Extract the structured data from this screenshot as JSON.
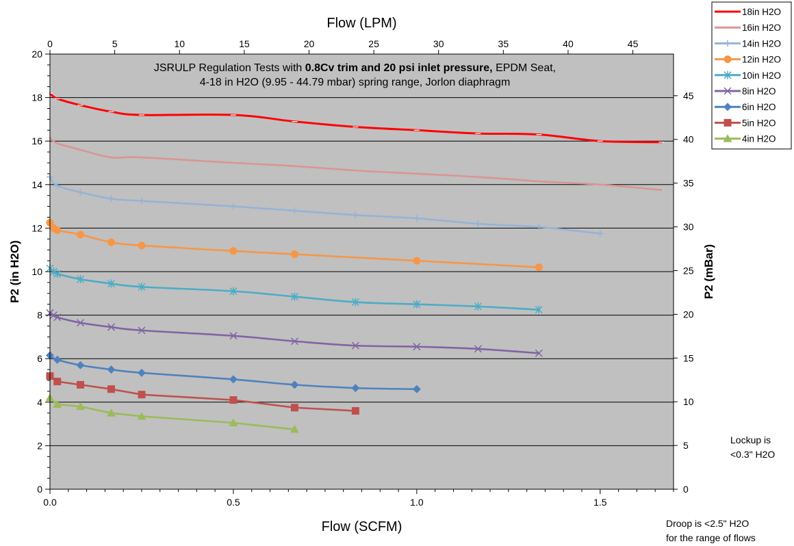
{
  "chart_data": {
    "type": "line",
    "title_lines": [
      [
        {
          "text": "JSRULP Regulation Tests with ",
          "bold": false
        },
        {
          "text": "0.8Cv trim and 20 psi inlet pressure,",
          "bold": true
        },
        {
          "text": " EPDM Seat,",
          "bold": false
        }
      ],
      [
        {
          "text": "4-18 in H2O (9.95 - 44.79 mbar) spring range, Jorlon diaphragm",
          "bold": false
        }
      ]
    ],
    "xlabel": "Flow (SCFM)",
    "x2label": "Flow (LPM)",
    "ylabel": "P2 (in H2O)",
    "y2label": "P2 (mBar)",
    "xlim": [
      0,
      1.7
    ],
    "ylim": [
      0,
      20
    ],
    "x2lim": [
      0,
      48.14
    ],
    "y2lim": [
      0,
      49.76
    ],
    "x_ticks": [
      0.0,
      0.5,
      1.0,
      1.5
    ],
    "x_tick_labels": [
      "0.0",
      "0.5",
      "1.0",
      "1.5"
    ],
    "y_ticks": [
      0,
      2,
      4,
      6,
      8,
      10,
      12,
      14,
      16,
      18,
      20
    ],
    "x2_ticks": [
      0,
      5,
      10,
      15,
      20,
      25,
      30,
      35,
      40,
      45
    ],
    "y2_ticks": [
      0,
      5,
      10,
      15,
      20,
      25,
      30,
      35,
      40,
      45
    ],
    "grid": "horizontal",
    "plot_background": "#c0c0c0",
    "legend_position": "top-right",
    "series": [
      {
        "name": "18in H2O",
        "color": "#ff0000",
        "marker": "dash",
        "smooth": true,
        "x": [
          0,
          0.02,
          0.083,
          0.167,
          0.25,
          0.5,
          0.667,
          0.833,
          1.0,
          1.167,
          1.333,
          1.5,
          1.667
        ],
        "y": [
          18.2,
          17.95,
          17.65,
          17.35,
          17.2,
          17.2,
          16.9,
          16.65,
          16.5,
          16.35,
          16.3,
          16.0,
          15.95
        ]
      },
      {
        "name": "16in H2O",
        "color": "#d99594",
        "marker": "none",
        "smooth": true,
        "x": [
          0,
          0.02,
          0.083,
          0.167,
          0.25,
          0.5,
          0.667,
          0.833,
          1.0,
          1.167,
          1.333,
          1.5,
          1.667
        ],
        "y": [
          16.15,
          15.9,
          15.6,
          15.25,
          15.25,
          15.0,
          14.85,
          14.65,
          14.5,
          14.35,
          14.15,
          14.0,
          13.75
        ]
      },
      {
        "name": "14in H2O",
        "color": "#95b3d7",
        "marker": "plus",
        "smooth": true,
        "x": [
          0,
          0.02,
          0.083,
          0.167,
          0.25,
          0.5,
          0.667,
          0.833,
          1.0,
          1.167,
          1.333,
          1.5
        ],
        "y": [
          14.35,
          13.95,
          13.65,
          13.35,
          13.25,
          13.0,
          12.8,
          12.6,
          12.45,
          12.2,
          12.05,
          11.75
        ]
      },
      {
        "name": "12in H2O",
        "color": "#f79646",
        "marker": "circle",
        "smooth": true,
        "x": [
          0,
          0.01,
          0.02,
          0.083,
          0.167,
          0.25,
          0.5,
          0.667,
          1.0,
          1.333
        ],
        "y": [
          12.25,
          12.0,
          11.9,
          11.7,
          11.35,
          11.2,
          10.95,
          10.8,
          10.5,
          10.2
        ]
      },
      {
        "name": "10in H2O",
        "color": "#4bacc6",
        "marker": "asterisk",
        "smooth": true,
        "x": [
          0,
          0.01,
          0.02,
          0.083,
          0.167,
          0.25,
          0.5,
          0.667,
          0.833,
          1.0,
          1.167,
          1.333
        ],
        "y": [
          10.15,
          10.0,
          9.9,
          9.65,
          9.45,
          9.3,
          9.1,
          8.85,
          8.6,
          8.5,
          8.4,
          8.25
        ]
      },
      {
        "name": "8in H2O",
        "color": "#8064a2",
        "marker": "x",
        "smooth": true,
        "x": [
          0,
          0.01,
          0.02,
          0.083,
          0.167,
          0.25,
          0.5,
          0.667,
          0.833,
          1.0,
          1.167,
          1.333
        ],
        "y": [
          8.1,
          8.0,
          7.9,
          7.65,
          7.45,
          7.3,
          7.05,
          6.8,
          6.6,
          6.55,
          6.45,
          6.25
        ]
      },
      {
        "name": "6in H2O",
        "color": "#4f81bd",
        "marker": "diamond",
        "smooth": true,
        "x": [
          0,
          0.02,
          0.083,
          0.167,
          0.25,
          0.5,
          0.667,
          0.833,
          1.0
        ],
        "y": [
          6.15,
          5.95,
          5.7,
          5.5,
          5.35,
          5.05,
          4.8,
          4.65,
          4.6
        ]
      },
      {
        "name": "5in H2O",
        "color": "#c0504d",
        "marker": "square",
        "smooth": false,
        "x": [
          0,
          0.02,
          0.083,
          0.167,
          0.25,
          0.5,
          0.667,
          0.833
        ],
        "y": [
          5.2,
          4.95,
          4.8,
          4.6,
          4.35,
          4.1,
          3.75,
          3.6
        ]
      },
      {
        "name": "4in H2O",
        "color": "#9bbb59",
        "marker": "triangle",
        "smooth": false,
        "x": [
          0,
          0.02,
          0.083,
          0.167,
          0.25,
          0.5,
          0.667
        ],
        "y": [
          4.2,
          3.9,
          3.8,
          3.5,
          3.35,
          3.05,
          2.75
        ]
      }
    ]
  },
  "notes": {
    "lockup_line1": "Lockup is",
    "lockup_line2": "<0.3\" H2O",
    "droop_line1": "Droop is <2.5\" H2O",
    "droop_line2": "for the range of flows"
  }
}
